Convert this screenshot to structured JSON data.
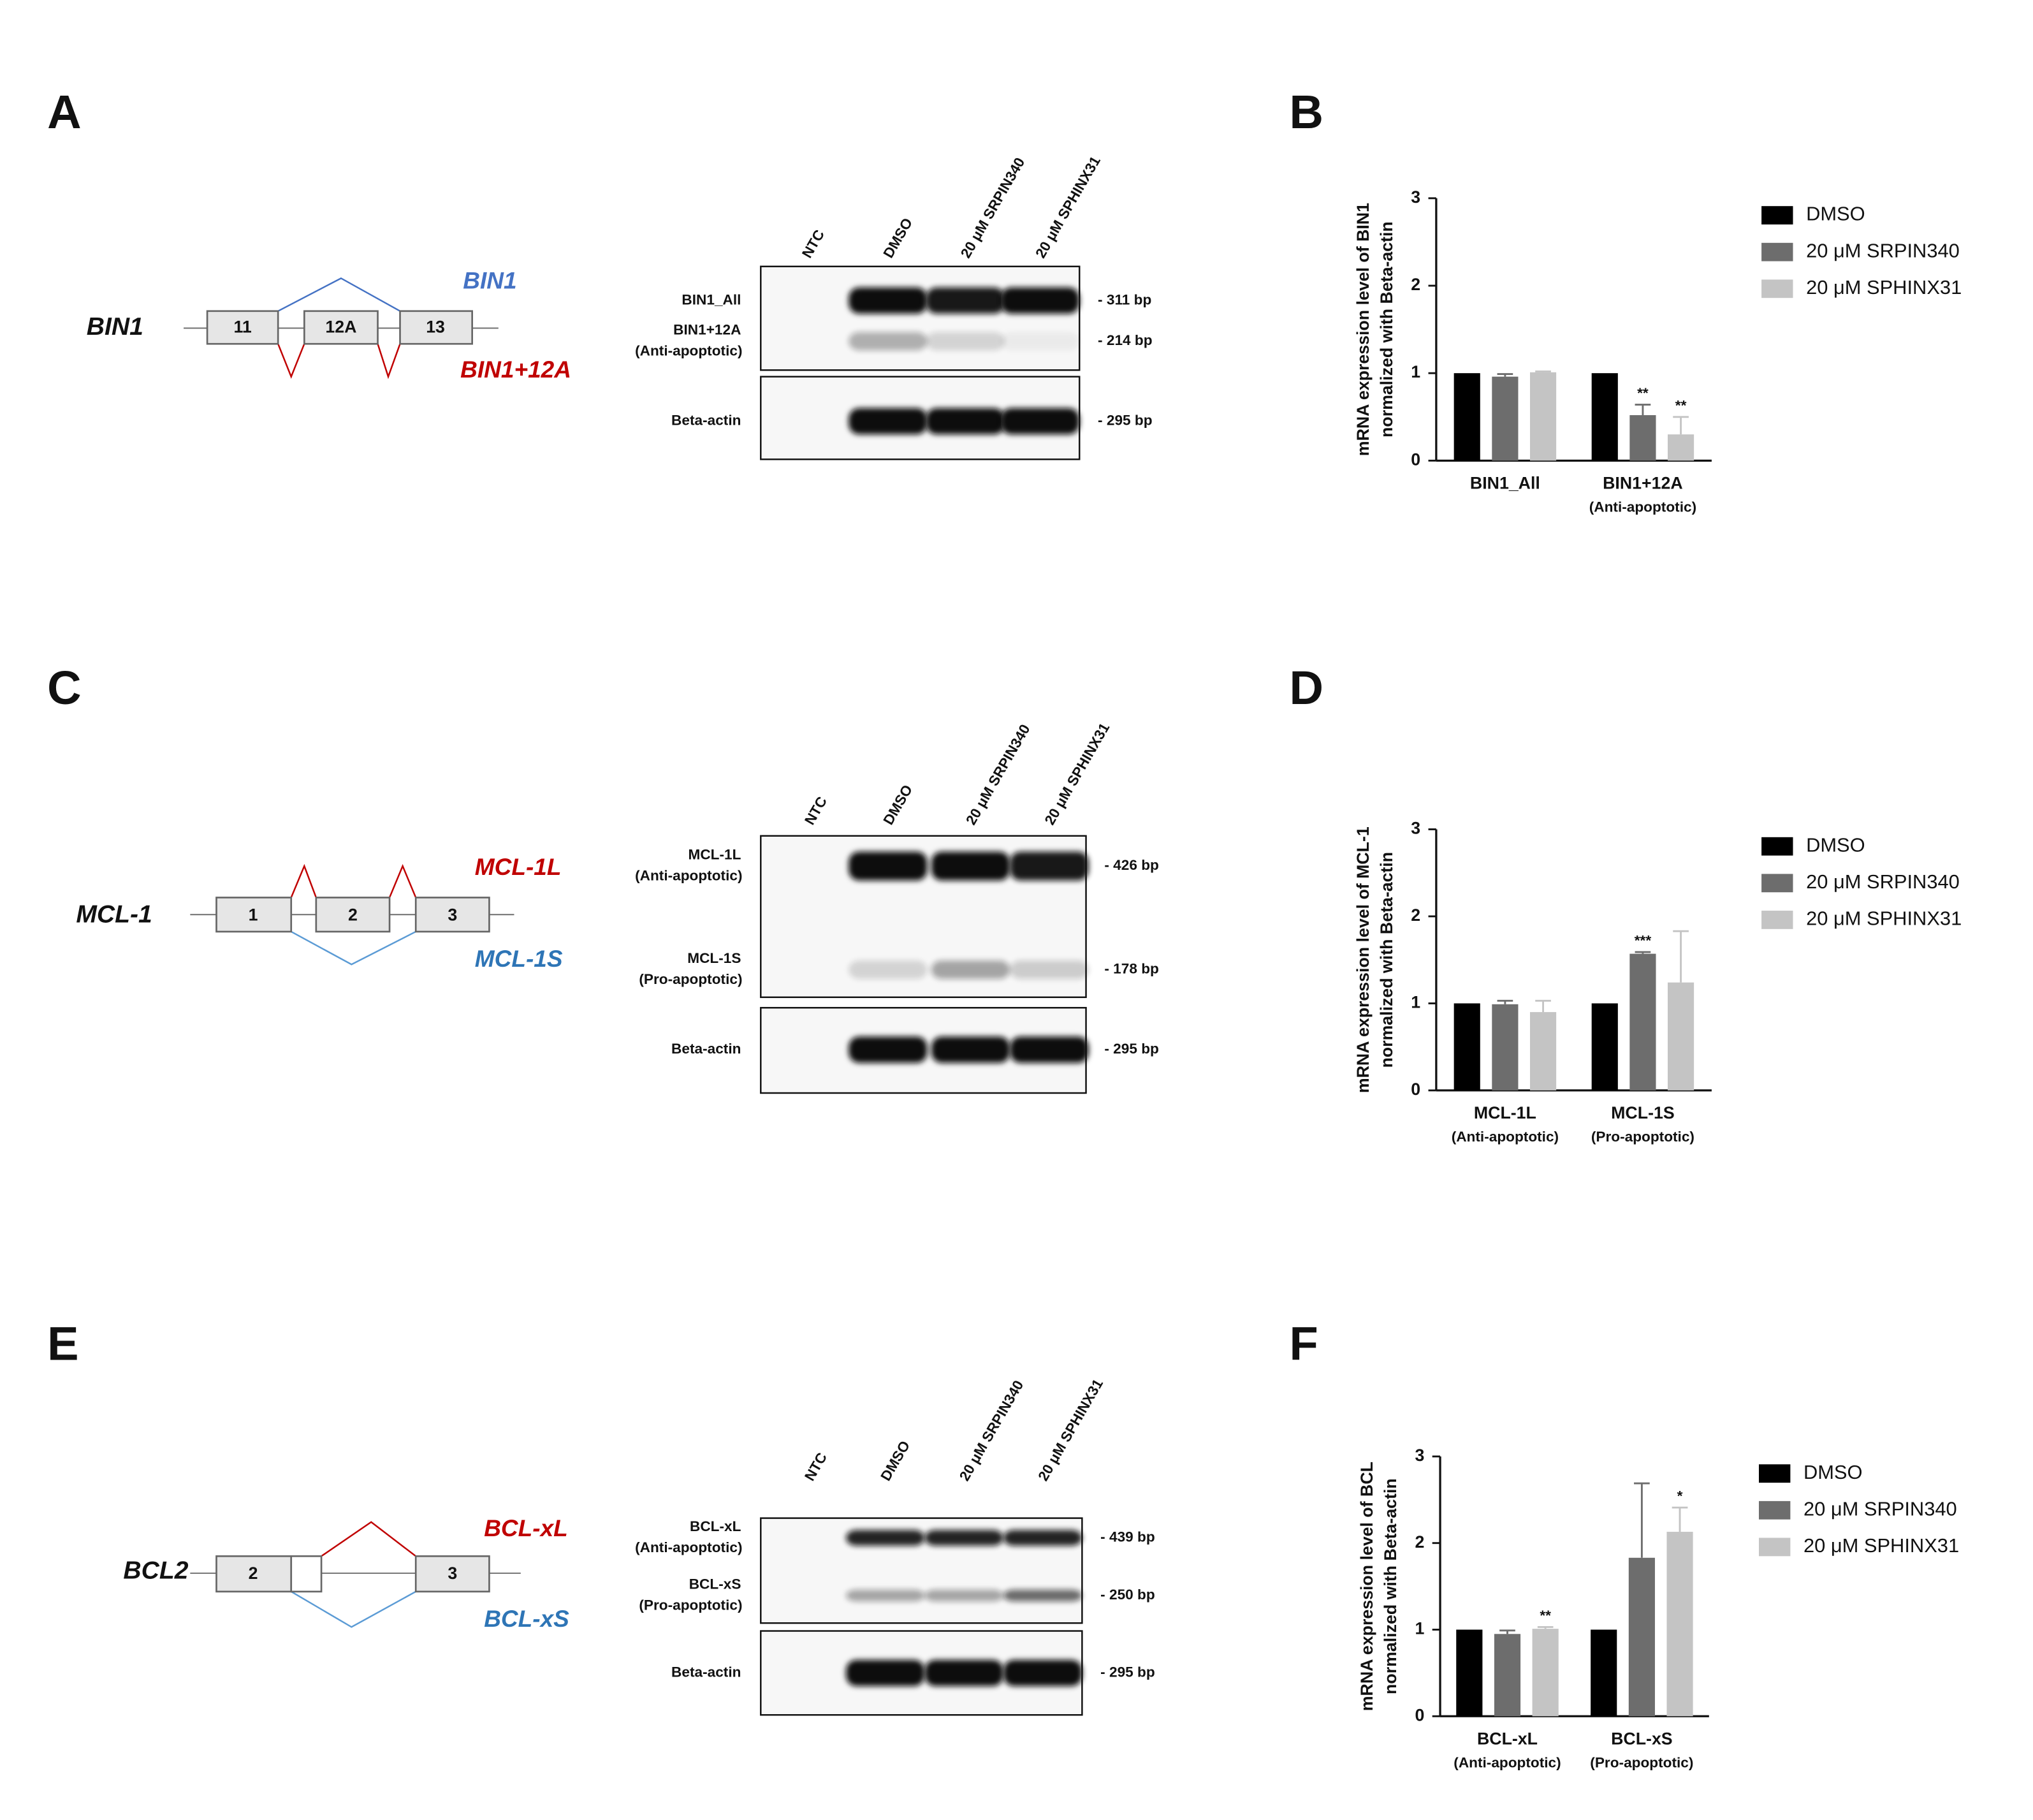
{
  "figure": {
    "panel_labels": [
      "A",
      "B",
      "C",
      "D",
      "E",
      "F"
    ],
    "diagrams": [
      {
        "gene": "BIN1",
        "exons": [
          "11",
          "12A",
          "13"
        ],
        "isoforms": [
          {
            "name": "BIN1",
            "color": "#4472c4"
          },
          {
            "name": "BIN1+12A",
            "color": "#c00000"
          }
        ]
      },
      {
        "gene": "MCL-1",
        "exons": [
          "1",
          "2",
          "3"
        ],
        "isoforms": [
          {
            "name": "MCL-1L",
            "color": "#c00000"
          },
          {
            "name": "MCL-1S",
            "color": "#2e75b6"
          }
        ]
      },
      {
        "gene": "BCL2",
        "exons": [
          "2",
          "3"
        ],
        "isoforms": [
          {
            "name": "BCL-xL",
            "color": "#c00000"
          },
          {
            "name": "BCL-xS",
            "color": "#2e75b6"
          }
        ]
      }
    ],
    "gels": [
      {
        "lanes": [
          "NTC",
          "DMSO",
          "20 μM SRPIN340",
          "20 μM SPHINX31"
        ],
        "bands": [
          {
            "name": "BIN1_All",
            "size": "- 311 bp"
          },
          {
            "name": "BIN1+12A",
            "note": "(Anti-apoptotic)",
            "size": "- 214 bp"
          },
          {
            "name": "Beta-actin",
            "size": "- 295 bp"
          }
        ]
      },
      {
        "lanes": [
          "NTC",
          "DMSO",
          "20 μM SRPIN340",
          "20 μM SPHINX31"
        ],
        "bands": [
          {
            "name": "MCL-1L",
            "note": "(Anti-apoptotic)",
            "size": "- 426 bp"
          },
          {
            "name": "MCL-1S",
            "note": "(Pro-apoptotic)",
            "size": "- 178 bp"
          },
          {
            "name": "Beta-actin",
            "size": "- 295 bp"
          }
        ]
      },
      {
        "lanes": [
          "NTC",
          "DMSO",
          "20 μM SRPIN340",
          "20 μM SPHINX31"
        ],
        "bands": [
          {
            "name": "BCL-xL",
            "note": "(Anti-apoptotic)",
            "size": "- 439 bp"
          },
          {
            "name": "BCL-xS",
            "note": "(Pro-apoptotic)",
            "size": "- 250 bp"
          },
          {
            "name": "Beta-actin",
            "size": "- 295 bp"
          }
        ]
      }
    ]
  },
  "chart_data": [
    {
      "type": "bar",
      "ylabel": [
        "mRNA expression level of BIN1",
        "normalized with Beta-actin"
      ],
      "categories": [
        "BIN1_All",
        "BIN1+12A"
      ],
      "category_sublabels": [
        null,
        "(Anti-apoptotic)"
      ],
      "series": [
        {
          "name": "DMSO",
          "color": "#000000",
          "values": [
            1,
            1
          ]
        },
        {
          "name": "20 μM SRPIN340",
          "color": "#6d6d6d",
          "values": [
            0.96,
            0.52
          ],
          "errors": [
            0.03,
            0.12
          ],
          "significance": [
            null,
            "**"
          ]
        },
        {
          "name": "20 μM SPHINX31",
          "color": "#c4c4c4",
          "values": [
            1.01,
            0.3
          ],
          "errors": [
            0.01,
            0.2
          ],
          "significance": [
            null,
            "**"
          ]
        }
      ],
      "ylim": [
        0,
        3
      ],
      "yticks": [
        0,
        1,
        2,
        3
      ],
      "legend": "right"
    },
    {
      "type": "bar",
      "ylabel": [
        "mRNA expression level of MCL-1",
        "normalized with Beta-actin"
      ],
      "categories": [
        "MCL-1L",
        "MCL-1S"
      ],
      "category_sublabels": [
        "(Anti-apoptotic)",
        "(Pro-apoptotic)"
      ],
      "series": [
        {
          "name": "DMSO",
          "color": "#000000",
          "values": [
            1,
            1
          ]
        },
        {
          "name": "20 μM SRPIN340",
          "color": "#6d6d6d",
          "values": [
            0.99,
            1.57
          ],
          "errors": [
            0.04,
            0.02
          ],
          "significance": [
            null,
            "***"
          ]
        },
        {
          "name": "20 μM SPHINX31",
          "color": "#c4c4c4",
          "values": [
            0.9,
            1.24
          ],
          "errors": [
            0.13,
            0.59
          ]
        }
      ],
      "ylim": [
        0,
        3
      ],
      "yticks": [
        0,
        1,
        2,
        3
      ],
      "legend": "right"
    },
    {
      "type": "bar",
      "ylabel": [
        "mRNA expression level of BCL",
        "normalized with Beta-actin"
      ],
      "categories": [
        "BCL-xL",
        "BCL-xS"
      ],
      "category_sublabels": [
        "(Anti-apoptotic)",
        "(Pro-apoptotic)"
      ],
      "series": [
        {
          "name": "DMSO",
          "color": "#000000",
          "values": [
            1,
            1
          ]
        },
        {
          "name": "20 μM SRPIN340",
          "color": "#6d6d6d",
          "values": [
            0.95,
            1.83
          ],
          "errors": [
            0.04,
            0.86
          ]
        },
        {
          "name": "20 μM SPHINX31",
          "color": "#c4c4c4",
          "values": [
            1.01,
            2.13
          ],
          "errors": [
            0.02,
            0.28
          ],
          "significance": [
            "**",
            "*"
          ]
        }
      ],
      "ylim": [
        0,
        3
      ],
      "yticks": [
        0,
        1,
        2,
        3
      ],
      "legend": "right"
    }
  ]
}
